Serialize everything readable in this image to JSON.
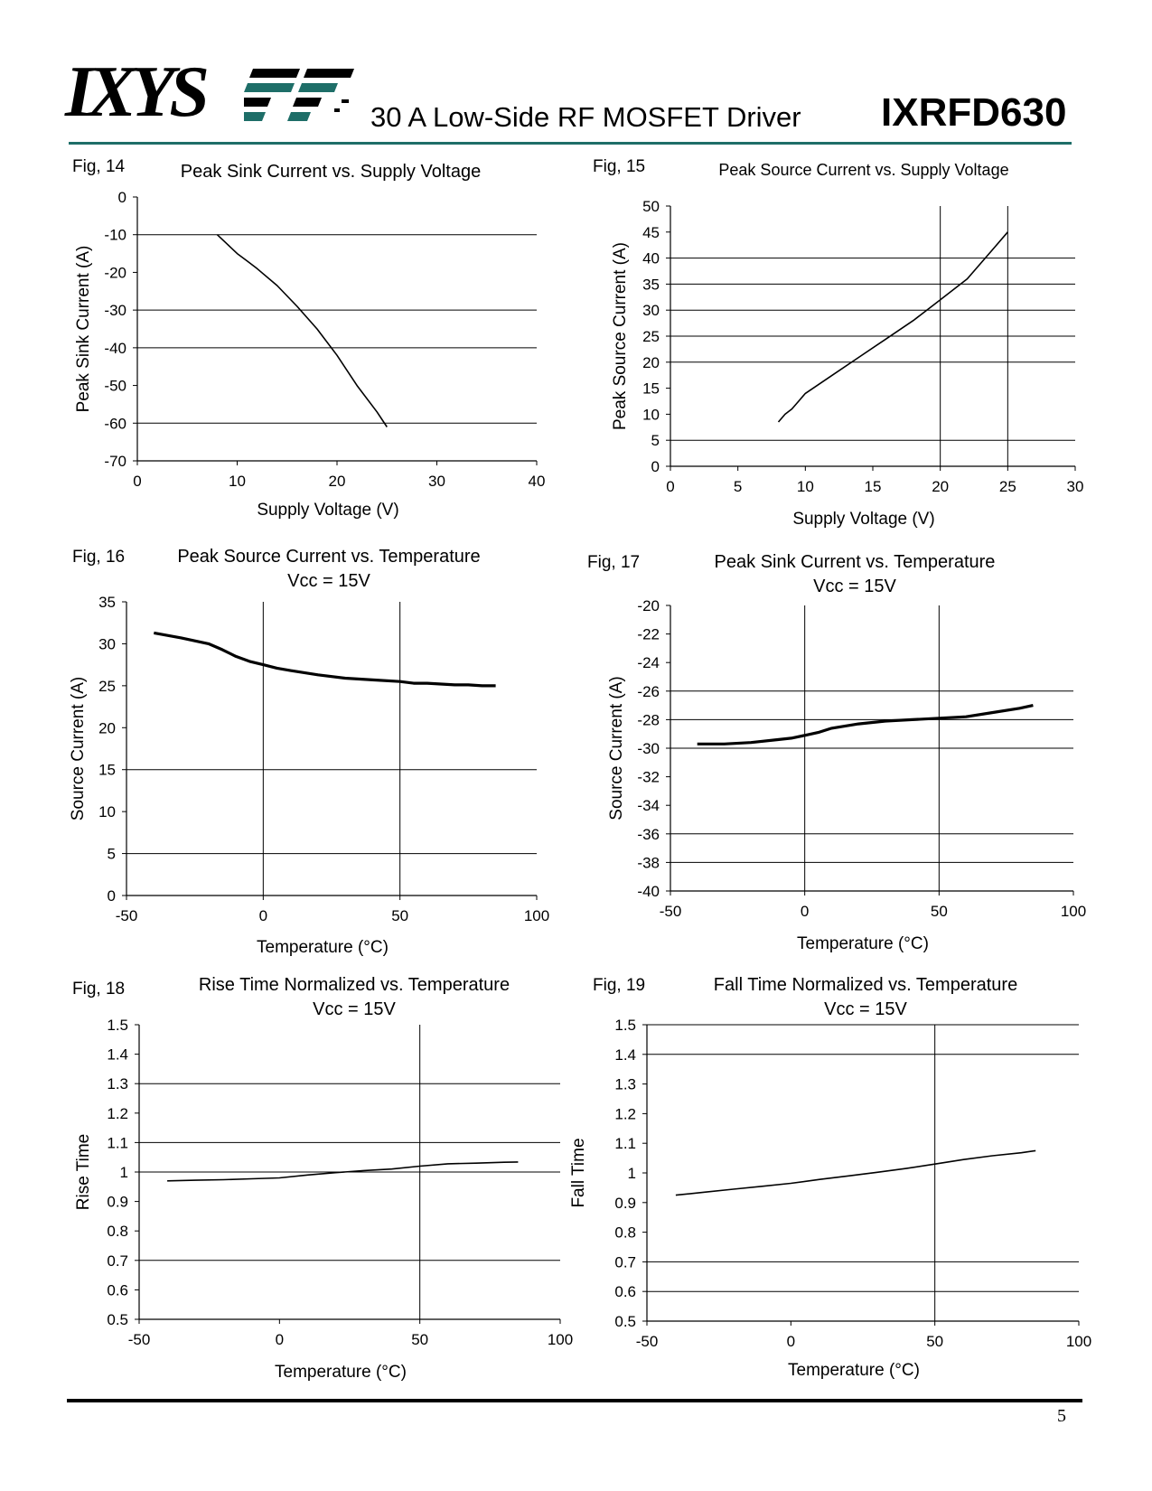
{
  "header": {
    "logo_text": "IXYS",
    "subtitle": "30 A Low-Side RF MOSFET Driver",
    "part_number": "IXRFD630"
  },
  "footer": {
    "page_number": "5"
  },
  "chart_data": [
    {
      "id": "fig14",
      "fig_label": "Fig, 14",
      "type": "line",
      "title": "Peak Sink Current vs. Supply Voltage",
      "title2": "",
      "xlabel": "Supply Voltage (V)",
      "ylabel": "Peak Sink Current (A)",
      "xlim": [
        0,
        40
      ],
      "ylim": [
        -70,
        0
      ],
      "xticks": [
        0,
        10,
        20,
        30,
        40
      ],
      "yticks": [
        0,
        -10,
        -20,
        -30,
        -40,
        -50,
        -60,
        -70
      ],
      "h_grid": [
        -10,
        -30,
        -40,
        -60
      ],
      "v_grid": [],
      "series": [
        {
          "x": [
            8,
            9,
            10,
            11,
            12,
            14,
            16,
            18,
            20,
            22,
            24,
            25
          ],
          "y": [
            -10,
            -12.5,
            -15,
            -17,
            -19,
            -23.5,
            -29,
            -35,
            -42,
            -50,
            -57,
            -61
          ]
        }
      ]
    },
    {
      "id": "fig15",
      "fig_label": "Fig, 15",
      "type": "line",
      "title": "Peak Source Current vs. Supply Voltage",
      "title2": "",
      "xlabel": "Supply Voltage (V)",
      "ylabel": "Peak Source Current (A)",
      "xlim": [
        0,
        30
      ],
      "ylim": [
        0,
        50
      ],
      "xticks": [
        0,
        5,
        10,
        15,
        20,
        25,
        30
      ],
      "yticks": [
        0,
        5,
        10,
        15,
        20,
        25,
        30,
        35,
        40,
        45,
        50
      ],
      "h_grid": [
        5,
        20,
        25,
        30,
        35,
        40
      ],
      "v_grid": [
        20,
        25
      ],
      "series": [
        {
          "x": [
            8,
            8.5,
            9,
            9.5,
            10,
            12,
            14,
            16,
            18,
            20,
            22,
            24,
            25
          ],
          "y": [
            8.5,
            10,
            11,
            12.5,
            14,
            17.5,
            21,
            24.5,
            28,
            32,
            36,
            42,
            45
          ]
        }
      ]
    },
    {
      "id": "fig16",
      "fig_label": "Fig, 16",
      "type": "line",
      "title": "Peak Source Current vs. Temperature",
      "title2": "Vcc = 15V",
      "xlabel": "Temperature (°C)",
      "ylabel": "Source Current (A)",
      "xlim": [
        -50,
        100
      ],
      "ylim": [
        0,
        35
      ],
      "xticks": [
        -50,
        0,
        50,
        100
      ],
      "yticks": [
        0,
        5,
        10,
        15,
        20,
        25,
        30,
        35
      ],
      "h_grid": [
        5,
        15
      ],
      "v_grid": [
        0,
        50
      ],
      "series": [
        {
          "x": [
            -40,
            -30,
            -20,
            -15,
            -10,
            -5,
            0,
            5,
            10,
            20,
            30,
            40,
            50,
            55,
            60,
            65,
            70,
            75,
            80,
            85
          ],
          "y": [
            31.3,
            30.7,
            30.0,
            29.3,
            28.5,
            27.9,
            27.5,
            27.1,
            26.8,
            26.3,
            25.9,
            25.7,
            25.5,
            25.3,
            25.3,
            25.2,
            25.1,
            25.1,
            25.0,
            25.0
          ]
        }
      ]
    },
    {
      "id": "fig17",
      "fig_label": "Fig, 17",
      "type": "line",
      "title": "Peak Sink Current vs. Temperature",
      "title2": "Vcc = 15V",
      "xlabel": "Temperature (°C)",
      "ylabel": "Source Current (A)",
      "xlim": [
        -50,
        100
      ],
      "ylim": [
        -40,
        -20
      ],
      "xticks": [
        -50,
        0,
        50,
        100
      ],
      "yticks": [
        -20,
        -22,
        -24,
        -26,
        -28,
        -30,
        -32,
        -34,
        -36,
        -38,
        -40
      ],
      "h_grid": [
        -26,
        -28,
        -30,
        -36,
        -38
      ],
      "v_grid": [
        0,
        50
      ],
      "series": [
        {
          "x": [
            -40,
            -30,
            -20,
            -10,
            -5,
            0,
            5,
            10,
            20,
            30,
            40,
            50,
            60,
            70,
            80,
            85
          ],
          "y": [
            -29.7,
            -29.7,
            -29.6,
            -29.4,
            -29.3,
            -29.1,
            -28.9,
            -28.6,
            -28.3,
            -28.1,
            -28.0,
            -27.9,
            -27.8,
            -27.5,
            -27.2,
            -27.0
          ]
        }
      ]
    },
    {
      "id": "fig18",
      "fig_label": "Fig, 18",
      "type": "line",
      "title": "Rise Time Normalized vs. Temperature",
      "title2": "Vcc = 15V",
      "xlabel": "Temperature (°C)",
      "ylabel": "Rise Time",
      "xlim": [
        -50,
        100
      ],
      "ylim": [
        0.5,
        1.5
      ],
      "xticks": [
        -50,
        0,
        50,
        100
      ],
      "yticks": [
        0.5,
        0.6,
        0.7,
        0.8,
        0.9,
        1,
        1.1,
        1.2,
        1.3,
        1.4,
        1.5
      ],
      "h_grid": [
        0.7,
        1,
        1.1,
        1.3
      ],
      "v_grid": [
        50
      ],
      "series": [
        {
          "x": [
            -40,
            -30,
            -20,
            -10,
            0,
            10,
            20,
            30,
            40,
            50,
            60,
            70,
            80,
            85
          ],
          "y": [
            0.97,
            0.972,
            0.974,
            0.977,
            0.98,
            0.99,
            0.998,
            1.005,
            1.01,
            1.02,
            1.028,
            1.03,
            1.033,
            1.034
          ]
        }
      ]
    },
    {
      "id": "fig19",
      "fig_label": "Fig, 19",
      "type": "line",
      "title": "Fall Time Normalized vs. Temperature",
      "title2": "Vcc = 15V",
      "xlabel": "Temperature (°C)",
      "ylabel": "Fall Time",
      "xlim": [
        -50,
        100
      ],
      "ylim": [
        0.5,
        1.5
      ],
      "xticks": [
        -50,
        0,
        50,
        100
      ],
      "yticks": [
        0.5,
        0.6,
        0.7,
        0.8,
        0.9,
        1,
        1.1,
        1.2,
        1.3,
        1.4,
        1.5
      ],
      "h_grid": [
        0.6,
        0.7,
        1.4,
        1.5
      ],
      "v_grid": [
        50
      ],
      "series": [
        {
          "x": [
            -40,
            -30,
            -20,
            -10,
            0,
            10,
            20,
            30,
            40,
            50,
            60,
            70,
            80,
            85
          ],
          "y": [
            0.925,
            0.935,
            0.945,
            0.955,
            0.965,
            0.978,
            0.99,
            1.002,
            1.015,
            1.03,
            1.045,
            1.058,
            1.068,
            1.075
          ]
        }
      ]
    }
  ]
}
